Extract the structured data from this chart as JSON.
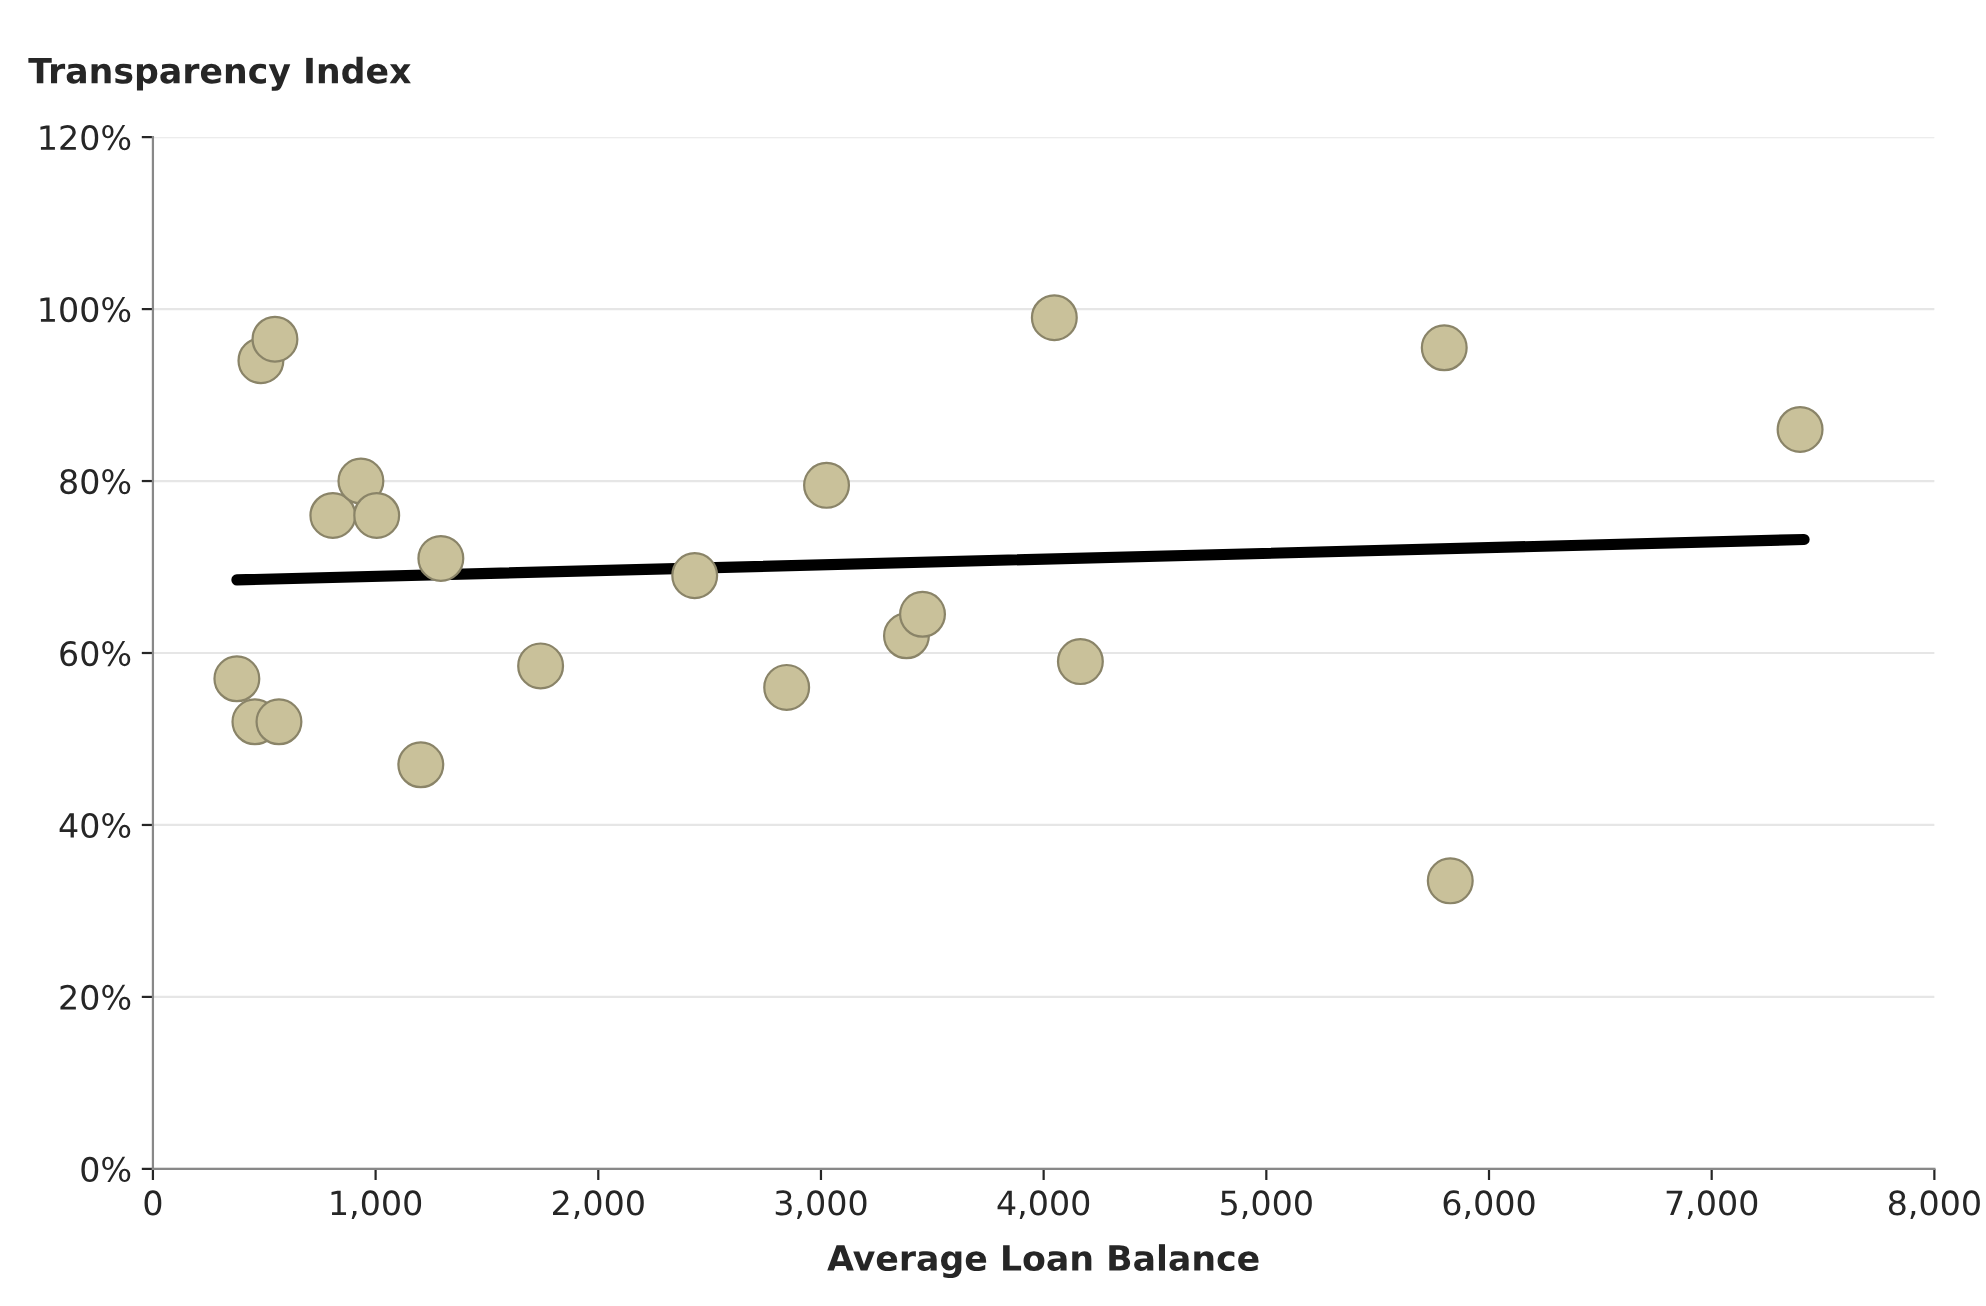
{
  "chart_data": {
    "type": "scatter",
    "ylabel": "Transparency Index",
    "xlabel": "Average Loan Balance",
    "series": [
      {
        "marker": "circle",
        "color": "#c9c19a",
        "x": [
          377,
          458,
          566,
          485,
          548,
          808,
          934,
          1005,
          1293,
          1203,
          1741,
          2433,
          2846,
          3025,
          3384,
          3456,
          4048,
          4165,
          5799,
          5826,
          7397
        ],
        "values": [
          57,
          52,
          52,
          94,
          96.5,
          76,
          80,
          76,
          71,
          47,
          58.5,
          69,
          56,
          79.5,
          62,
          64.5,
          99,
          59,
          95.5,
          33.5,
          86
        ]
      },
      {
        "type": "line",
        "color": "#000000",
        "x": [
          377,
          7415
        ],
        "values": [
          68.5,
          73.2
        ]
      }
    ],
    "xlim": [
      0,
      8000
    ],
    "xticks": [
      {
        "value": 0,
        "label": "0"
      },
      {
        "value": 1000,
        "label": "1,000"
      },
      {
        "value": 2000,
        "label": "2,000"
      },
      {
        "value": 3000,
        "label": "3,000"
      },
      {
        "value": 4000,
        "label": "4,000"
      },
      {
        "value": 5000,
        "label": "5,000"
      },
      {
        "value": 6000,
        "label": "6,000"
      },
      {
        "value": 7000,
        "label": "7,000"
      },
      {
        "value": 8000,
        "label": "8,000"
      }
    ],
    "ylim": [
      0,
      120
    ],
    "yticks": [
      {
        "value": 0,
        "label": "0%"
      },
      {
        "value": 20,
        "label": "20%"
      },
      {
        "value": 40,
        "label": "40%"
      },
      {
        "value": 60,
        "label": "60%"
      },
      {
        "value": 80,
        "label": "80%"
      },
      {
        "value": 100,
        "label": "100%"
      },
      {
        "value": 120,
        "label": "120%"
      }
    ],
    "grid": "y",
    "legend": false
  }
}
